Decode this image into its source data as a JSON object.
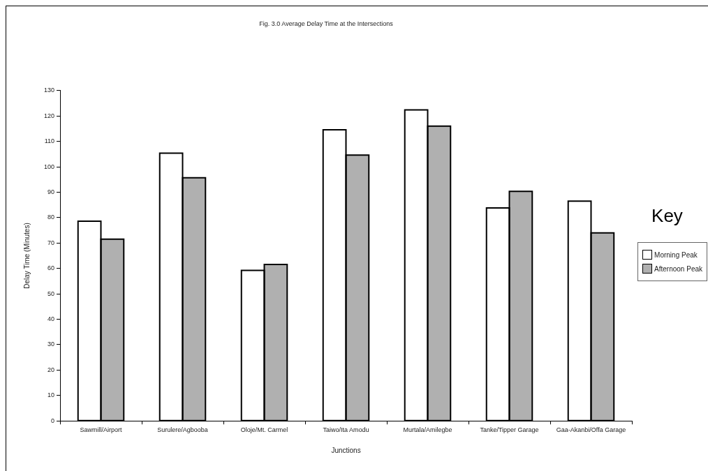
{
  "chart_data": {
    "type": "bar",
    "title": "Fig. 3.0 Average Delay Time at the Intersections",
    "xlabel": "Junctions",
    "ylabel": "Delay Time (Minutes)",
    "legend_title": "Key",
    "categories": [
      "Sawmill/Airport",
      "Surulere/Agbooba",
      "Oloje/Mt. Carmel",
      "Taiwo/Ita Amodu",
      "Murtala/Amilegbe",
      "Tanke/Tipper Garage",
      "Gaa-Akanbi/Offa Garage"
    ],
    "series": [
      {
        "name": "Morning Peak",
        "color": "#ffffff",
        "values": [
          78.6,
          105.4,
          59.2,
          114.6,
          122.4,
          83.8,
          86.5
        ]
      },
      {
        "name": "Afternoon Peak",
        "color": "#b0b0b0",
        "values": [
          71.5,
          95.7,
          61.6,
          104.6,
          116,
          90.3,
          74
        ]
      }
    ],
    "ylim": [
      0,
      130
    ],
    "yticks": [
      0,
      10,
      20,
      30,
      40,
      50,
      60,
      70,
      80,
      90,
      100,
      110,
      120,
      130
    ],
    "grid": false,
    "legend": "right"
  }
}
